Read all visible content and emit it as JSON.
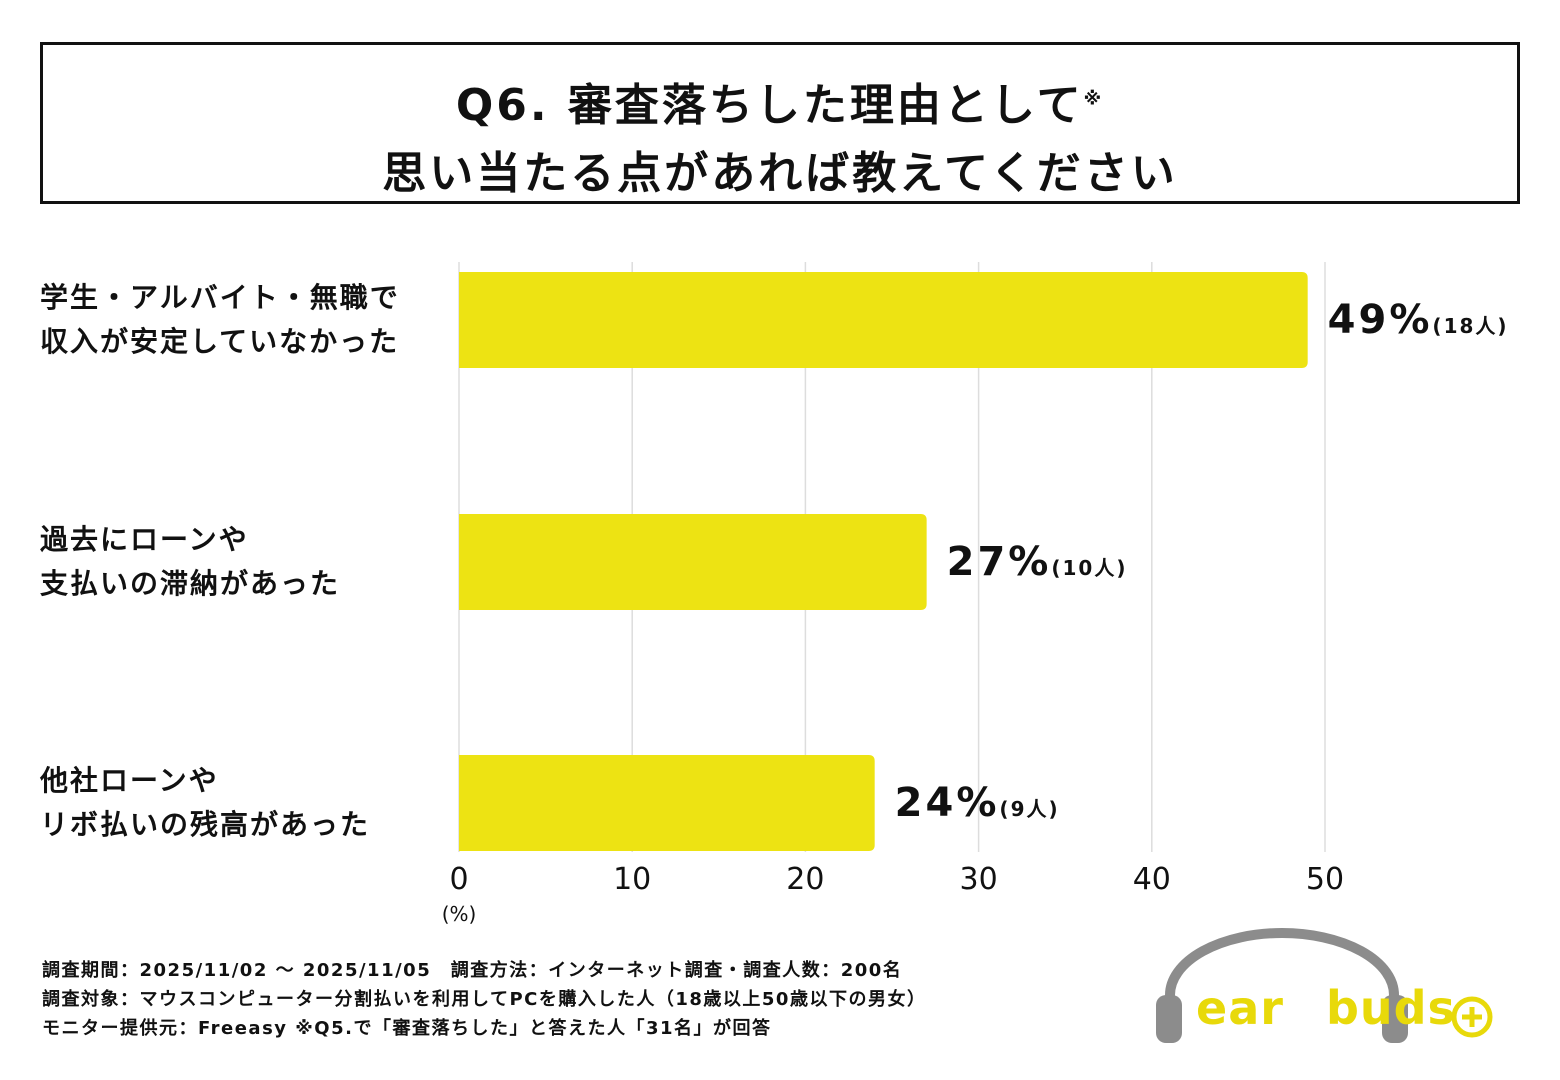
{
  "title": {
    "line1": "Q6. 審査落ちした理由として",
    "note_mark": "※",
    "line2": "思い当たる点があれば教えてください"
  },
  "chart_data": {
    "type": "bar",
    "orientation": "horizontal",
    "categories": [
      [
        "学生・アルバイト・無職で",
        "収入が安定していなかった"
      ],
      [
        "過去にローンや",
        "支払いの滞納があった"
      ],
      [
        "他社ローンや",
        "リボ払いの残高があった"
      ]
    ],
    "values": [
      49,
      27,
      24
    ],
    "value_labels": [
      "49%",
      "27%",
      "24%"
    ],
    "count_labels": [
      "(18人)",
      "(10人)",
      "(9人)"
    ],
    "xlim": [
      0,
      50
    ],
    "xticks": [
      "0",
      "10",
      "20",
      "30",
      "40",
      "50"
    ],
    "xunit": "(%)",
    "grid": true,
    "bar_color": "#ede313",
    "grid_color": "#dddddd"
  },
  "footnotes": [
    "調査期間：2025/11/02 ～ 2025/11/05　調査方法：インターネット調査・調査人数：200名",
    "調査対象：マウスコンピューター分割払いを利用してPCを購入した人（18歳以上50歳以下の男女）",
    "モニター提供元：Freeasy ※Q5.で「審査落ちした」と答えた人「31名」が回答"
  ],
  "logo": {
    "left_part": "ear",
    "right_part": "buds",
    "plus_icon": "circle-plus-icon",
    "headphone_icon": "headphones-icon",
    "brand_color": "#e8d90a",
    "headphone_color": "#8c8c8c"
  }
}
